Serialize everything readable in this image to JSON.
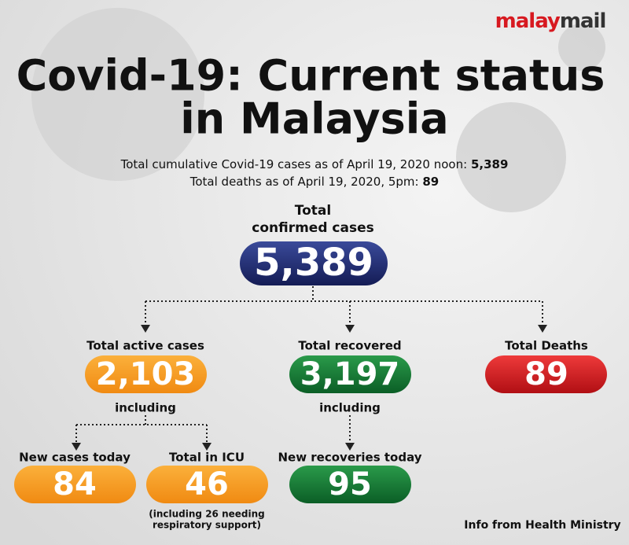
{
  "brand": {
    "part1": "malay",
    "part2": "mail"
  },
  "title": {
    "line1": "Covid-19: Current status",
    "line2": "in Malaysia"
  },
  "summary": [
    {
      "text": "Total cumulative Covid-19 cases as of April 19, 2020 noon:",
      "value": "5,389"
    },
    {
      "text": "Total deaths as of April 19, 2020, 5pm:",
      "value": "89"
    }
  ],
  "total": {
    "label_line1": "Total",
    "label_line2": "confirmed cases",
    "value": "5,389"
  },
  "active": {
    "label": "Total active cases",
    "value": "2,103",
    "note": "including"
  },
  "recovered": {
    "label": "Total recovered",
    "value": "3,197",
    "note": "including"
  },
  "deaths": {
    "label": "Total Deaths",
    "value": "89"
  },
  "new_cases": {
    "label": "New cases today",
    "value": "84"
  },
  "icu": {
    "label": "Total in ICU",
    "value": "46",
    "note_line1": "(including 26 needing",
    "note_line2": "respiratory support)"
  },
  "new_recoveries": {
    "label": "New recoveries today",
    "value": "95"
  },
  "source": "Info from Health Ministry"
}
